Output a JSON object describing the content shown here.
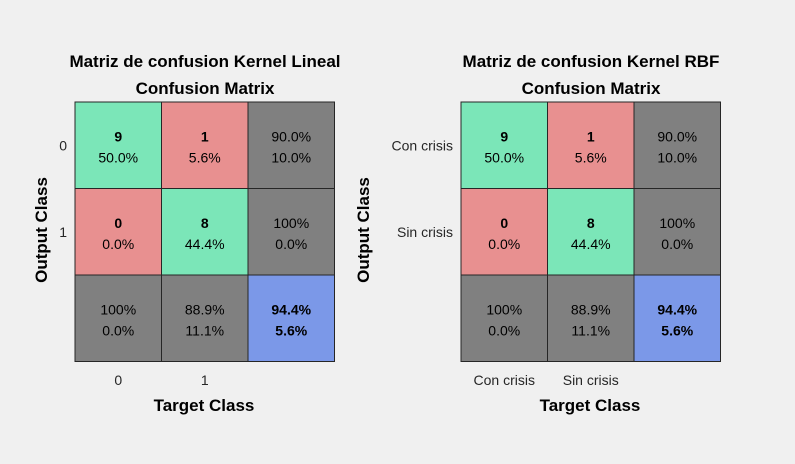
{
  "chart_data": [
    {
      "type": "heatmap",
      "title": "Matriz de confusion Kernel Lineal",
      "subtitle": "Confusion Matrix",
      "xlabel": "Target Class",
      "ylabel": "Output Class",
      "tick_labels": [
        "0",
        "1"
      ],
      "counts": [
        [
          9,
          1
        ],
        [
          0,
          8
        ]
      ],
      "percents": [
        [
          "50.0%",
          "5.6%"
        ],
        [
          "0.0%",
          "44.4%"
        ]
      ],
      "row_summary": [
        [
          "90.0%",
          "10.0%"
        ],
        [
          "100%",
          "0.0%"
        ]
      ],
      "col_summary": [
        [
          "100%",
          "0.0%"
        ],
        [
          "88.9%",
          "11.1%"
        ]
      ],
      "overall": [
        "94.4%",
        "5.6%"
      ]
    },
    {
      "type": "heatmap",
      "title": "Matriz de confusion Kernel RBF",
      "subtitle": "Confusion Matrix",
      "xlabel": "Target Class",
      "ylabel": "Output Class",
      "tick_labels": [
        "Con crisis",
        "Sin crisis"
      ],
      "counts": [
        [
          9,
          1
        ],
        [
          0,
          8
        ]
      ],
      "percents": [
        [
          "50.0%",
          "5.6%"
        ],
        [
          "0.0%",
          "44.4%"
        ]
      ],
      "row_summary": [
        [
          "90.0%",
          "10.0%"
        ],
        [
          "100%",
          "0.0%"
        ]
      ],
      "col_summary": [
        [
          "100%",
          "0.0%"
        ],
        [
          "88.9%",
          "11.1%"
        ]
      ],
      "overall": [
        "94.4%",
        "5.6%"
      ]
    }
  ],
  "colors": {
    "correct": "#7be6b8",
    "incorrect": "#e89090",
    "summary": "#808080",
    "overall": "#7b98e8",
    "good_text": "#0d7a0d",
    "bad_text": "#7a1010",
    "overall_good_text": "#0c5a0c",
    "overall_bad_text": "#5a0c3c",
    "grid_line": "#262626"
  }
}
